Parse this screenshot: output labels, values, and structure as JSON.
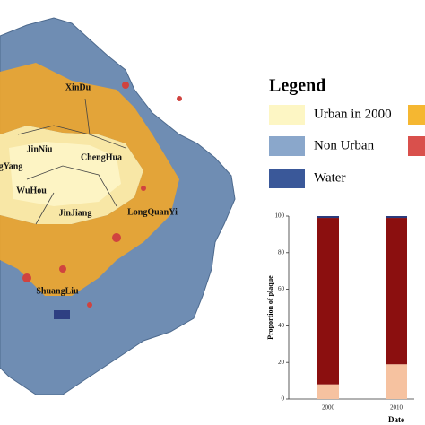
{
  "map": {
    "labels": [
      "XinDu",
      "JinNiu",
      "ChengHua",
      "gYang",
      "WuHou",
      "JinJiang",
      "LongQuanYi",
      "ShuangLiu"
    ]
  },
  "legend": {
    "title": "Legend",
    "items": [
      "Urban in 2000",
      "Non Urban",
      "Water"
    ]
  },
  "chart_data": {
    "type": "stacked-bar",
    "categories": [
      "2000",
      "2010"
    ],
    "series": [
      {
        "color": "#f6c2a0",
        "values": [
          8,
          19
        ]
      },
      {
        "color": "#8b0f0f",
        "values": [
          91,
          80
        ]
      },
      {
        "color": "#2b3a7c",
        "values": [
          1,
          1
        ]
      }
    ],
    "ylim": [
      0,
      100
    ],
    "yticks": [
      0,
      20,
      40,
      60,
      80,
      100
    ],
    "ylabel": "Proportion of plaque",
    "xlabel": "Date"
  }
}
